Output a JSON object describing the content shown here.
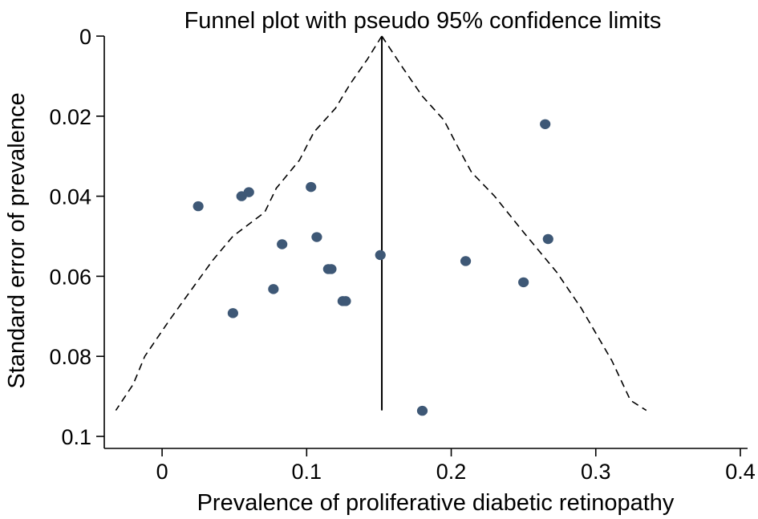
{
  "chart_data": {
    "type": "scatter",
    "title": "Funnel plot with pseudo 95% confidence limits",
    "xlabel": "Prevalence of proliferative diabetic retinopathy",
    "ylabel": "Standard error of prevalence",
    "xlim": [
      -0.04,
      0.405
    ],
    "ylim": [
      0,
      0.103
    ],
    "y_reversed": true,
    "xticks": [
      0,
      0.1,
      0.2,
      0.3,
      0.4
    ],
    "xtick_labels": [
      "0",
      "0.1",
      "0.2",
      "0.3",
      "0.4"
    ],
    "yticks": [
      0,
      0.02,
      0.04,
      0.06,
      0.08,
      0.1
    ],
    "ytick_labels": [
      "0",
      "0.02",
      "0.04",
      "0.06",
      "0.08",
      "0.1"
    ],
    "grid": false,
    "legend": "none",
    "pooled_estimate": 0.152,
    "confidence_limits": {
      "se_max": 0.0935,
      "lower": [
        [
          0.152,
          0
        ],
        [
          0.142,
          0.0058
        ],
        [
          0.13,
          0.012
        ],
        [
          0.12,
          0.018
        ],
        [
          0.105,
          0.024
        ],
        [
          0.095,
          0.031
        ],
        [
          0.079,
          0.038
        ],
        [
          0.071,
          0.044
        ],
        [
          0.049,
          0.05
        ],
        [
          0.035,
          0.056
        ],
        [
          0.023,
          0.062
        ],
        [
          0.005,
          0.071
        ],
        [
          -0.012,
          0.08
        ],
        [
          -0.02,
          0.087
        ],
        [
          -0.032,
          0.0935
        ]
      ],
      "upper": [
        [
          0.152,
          0
        ],
        [
          0.167,
          0.0082
        ],
        [
          0.18,
          0.015
        ],
        [
          0.195,
          0.021
        ],
        [
          0.205,
          0.028
        ],
        [
          0.214,
          0.034
        ],
        [
          0.23,
          0.04
        ],
        [
          0.25,
          0.049
        ],
        [
          0.273,
          0.059
        ],
        [
          0.29,
          0.068
        ],
        [
          0.311,
          0.081
        ],
        [
          0.324,
          0.091
        ],
        [
          0.335,
          0.0935
        ]
      ]
    },
    "points": [
      {
        "x": 0.265,
        "y": 0.022
      },
      {
        "x": 0.103,
        "y": 0.0377
      },
      {
        "x": 0.06,
        "y": 0.039
      },
      {
        "x": 0.055,
        "y": 0.04
      },
      {
        "x": 0.025,
        "y": 0.0425
      },
      {
        "x": 0.107,
        "y": 0.0502
      },
      {
        "x": 0.267,
        "y": 0.0507
      },
      {
        "x": 0.083,
        "y": 0.052
      },
      {
        "x": 0.151,
        "y": 0.0547
      },
      {
        "x": 0.21,
        "y": 0.0562
      },
      {
        "x": 0.115,
        "y": 0.0582
      },
      {
        "x": 0.117,
        "y": 0.0582
      },
      {
        "x": 0.25,
        "y": 0.0615
      },
      {
        "x": 0.077,
        "y": 0.0632
      },
      {
        "x": 0.125,
        "y": 0.0662
      },
      {
        "x": 0.127,
        "y": 0.0662
      },
      {
        "x": 0.049,
        "y": 0.0692
      },
      {
        "x": 0.18,
        "y": 0.0936
      }
    ]
  },
  "colors": {
    "marker": "#3e5876",
    "line": "#000000",
    "background": "#ffffff"
  }
}
